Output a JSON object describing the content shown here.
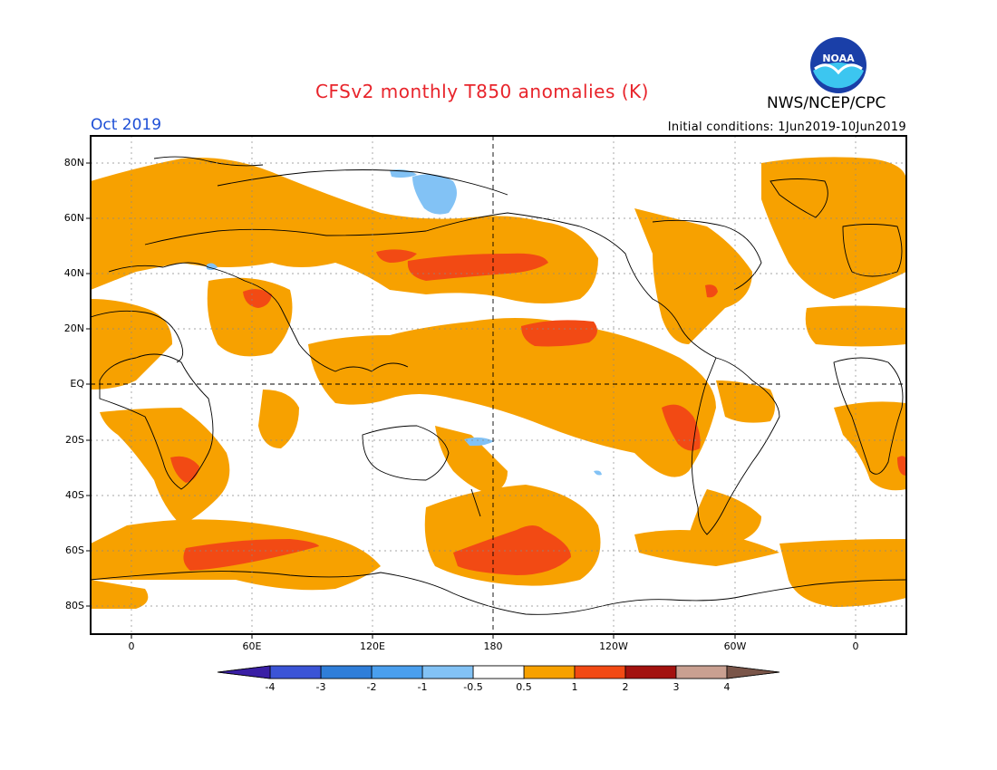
{
  "header": {
    "title": "CFSv2 monthly T850 anomalies (K)",
    "agency": "NWS/NCEP/CPC",
    "period": "Oct 2019",
    "initial_conditions": "Initial conditions: 1Jun2019-10Jun2019",
    "logo_text": "NOAA"
  },
  "axes": {
    "lat_labels": [
      "80N",
      "60N",
      "40N",
      "20N",
      "EQ",
      "20S",
      "40S",
      "60S",
      "80S"
    ],
    "lon_labels": [
      "0",
      "60E",
      "120E",
      "180",
      "120W",
      "60W",
      "0"
    ]
  },
  "colorbar": {
    "labels": [
      "-4",
      "-3",
      "-2",
      "-1",
      "-0.5",
      "0.5",
      "1",
      "2",
      "3",
      "4"
    ],
    "colors": [
      "#3a1fa5",
      "#3b54d6",
      "#2f7ed9",
      "#4a9fee",
      "#82c2f5",
      "#ffffff",
      "#f7a100",
      "#f24a14",
      "#a3120f",
      "#c9a091"
    ],
    "end_low": "#1f0a7a",
    "end_high": "#7a5549"
  },
  "legend_colors": {
    "level_05": "#f7a100",
    "level_1": "#f24a14",
    "level_neg05": "#82c2f5"
  }
}
